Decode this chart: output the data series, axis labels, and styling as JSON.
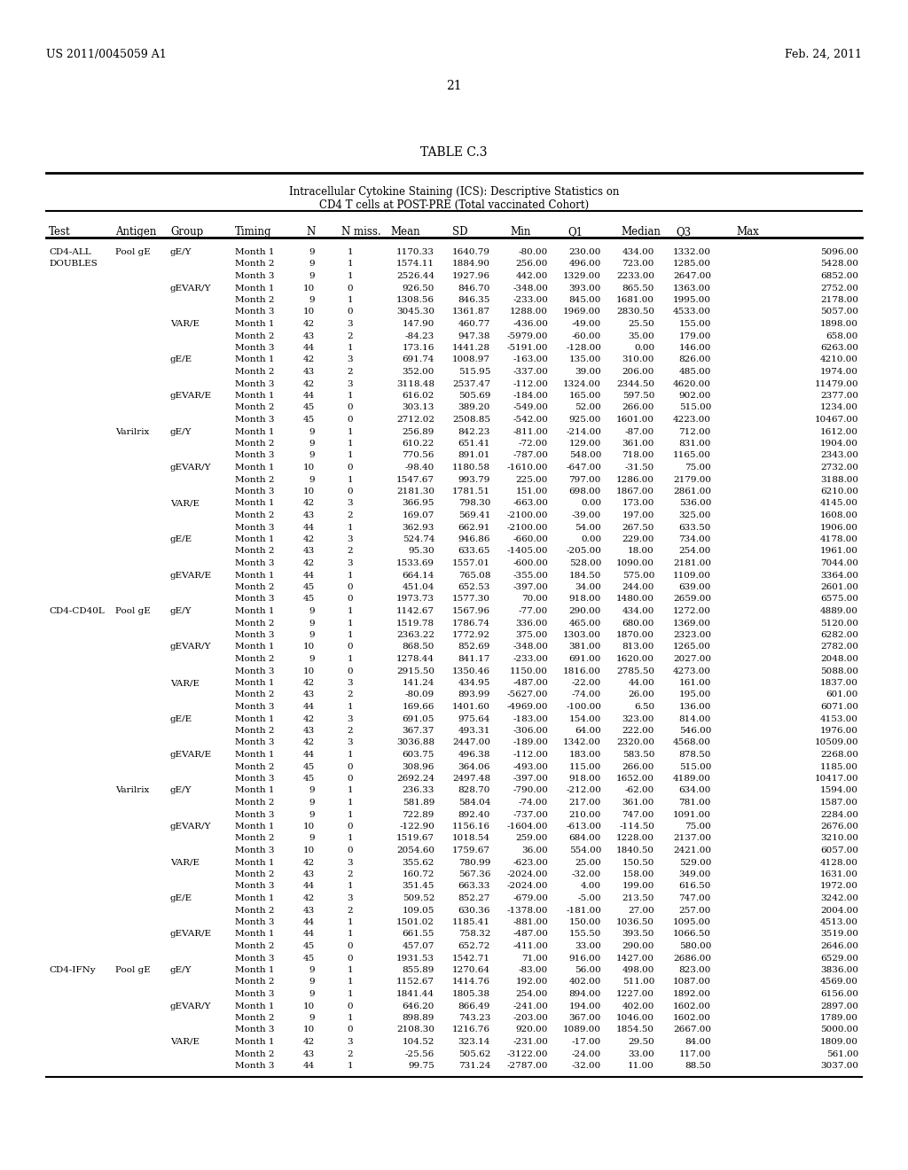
{
  "header_left": "US 2011/0045059 A1",
  "header_right": "Feb. 24, 2011",
  "page_number": "21",
  "table_title": "TABLE C.3",
  "subtitle1": "Intracellular Cytokine Staining (ICS): Descriptive Statistics on",
  "subtitle2": "CD4 T cells at POST-PRE (Total vaccinated Cohort)",
  "col_headers": [
    "Test",
    "Antigen",
    "Group",
    "Timing",
    "N",
    "N miss.",
    "Mean",
    "SD",
    "Min",
    "Q1",
    "Median",
    "Q3",
    "Max"
  ],
  "rows": [
    [
      "CD4-ALL",
      "Pool gE",
      "gE/Y",
      "Month 1",
      "9",
      "1",
      "1170.33",
      "1640.79",
      "-80.00",
      "230.00",
      "434.00",
      "1332.00",
      "5096.00"
    ],
    [
      "DOUBLES",
      "",
      "",
      "Month 2",
      "9",
      "1",
      "1574.11",
      "1884.90",
      "256.00",
      "496.00",
      "723.00",
      "1285.00",
      "5428.00"
    ],
    [
      "",
      "",
      "",
      "Month 3",
      "9",
      "1",
      "2526.44",
      "1927.96",
      "442.00",
      "1329.00",
      "2233.00",
      "2647.00",
      "6852.00"
    ],
    [
      "",
      "",
      "gEVAR/Y",
      "Month 1",
      "10",
      "0",
      "926.50",
      "846.70",
      "-348.00",
      "393.00",
      "865.50",
      "1363.00",
      "2752.00"
    ],
    [
      "",
      "",
      "",
      "Month 2",
      "9",
      "1",
      "1308.56",
      "846.35",
      "-233.00",
      "845.00",
      "1681.00",
      "1995.00",
      "2178.00"
    ],
    [
      "",
      "",
      "",
      "Month 3",
      "10",
      "0",
      "3045.30",
      "1361.87",
      "1288.00",
      "1969.00",
      "2830.50",
      "4533.00",
      "5057.00"
    ],
    [
      "",
      "",
      "VAR/E",
      "Month 1",
      "42",
      "3",
      "147.90",
      "460.77",
      "-436.00",
      "-49.00",
      "25.50",
      "155.00",
      "1898.00"
    ],
    [
      "",
      "",
      "",
      "Month 2",
      "43",
      "2",
      "-84.23",
      "947.38",
      "-5979.00",
      "-60.00",
      "35.00",
      "179.00",
      "658.00"
    ],
    [
      "",
      "",
      "",
      "Month 3",
      "44",
      "1",
      "173.16",
      "1441.28",
      "-5191.00",
      "-128.00",
      "0.00",
      "146.00",
      "6263.00"
    ],
    [
      "",
      "",
      "gE/E",
      "Month 1",
      "42",
      "3",
      "691.74",
      "1008.97",
      "-163.00",
      "135.00",
      "310.00",
      "826.00",
      "4210.00"
    ],
    [
      "",
      "",
      "",
      "Month 2",
      "43",
      "2",
      "352.00",
      "515.95",
      "-337.00",
      "39.00",
      "206.00",
      "485.00",
      "1974.00"
    ],
    [
      "",
      "",
      "",
      "Month 3",
      "42",
      "3",
      "3118.48",
      "2537.47",
      "-112.00",
      "1324.00",
      "2344.50",
      "4620.00",
      "11479.00"
    ],
    [
      "",
      "",
      "gEVAR/E",
      "Month 1",
      "44",
      "1",
      "616.02",
      "505.69",
      "-184.00",
      "165.00",
      "597.50",
      "902.00",
      "2377.00"
    ],
    [
      "",
      "",
      "",
      "Month 2",
      "45",
      "0",
      "303.13",
      "389.20",
      "-549.00",
      "52.00",
      "266.00",
      "515.00",
      "1234.00"
    ],
    [
      "",
      "",
      "",
      "Month 3",
      "45",
      "0",
      "2712.02",
      "2508.85",
      "-542.00",
      "925.00",
      "1601.00",
      "4223.00",
      "10467.00"
    ],
    [
      "",
      "Varilrix",
      "gE/Y",
      "Month 1",
      "9",
      "1",
      "256.89",
      "842.23",
      "-811.00",
      "-214.00",
      "-87.00",
      "712.00",
      "1612.00"
    ],
    [
      "",
      "",
      "",
      "Month 2",
      "9",
      "1",
      "610.22",
      "651.41",
      "-72.00",
      "129.00",
      "361.00",
      "831.00",
      "1904.00"
    ],
    [
      "",
      "",
      "",
      "Month 3",
      "9",
      "1",
      "770.56",
      "891.01",
      "-787.00",
      "548.00",
      "718.00",
      "1165.00",
      "2343.00"
    ],
    [
      "",
      "",
      "gEVAR/Y",
      "Month 1",
      "10",
      "0",
      "-98.40",
      "1180.58",
      "-1610.00",
      "-647.00",
      "-31.50",
      "75.00",
      "2732.00"
    ],
    [
      "",
      "",
      "",
      "Month 2",
      "9",
      "1",
      "1547.67",
      "993.79",
      "225.00",
      "797.00",
      "1286.00",
      "2179.00",
      "3188.00"
    ],
    [
      "",
      "",
      "",
      "Month 3",
      "10",
      "0",
      "2181.30",
      "1781.51",
      "151.00",
      "698.00",
      "1867.00",
      "2861.00",
      "6210.00"
    ],
    [
      "",
      "",
      "VAR/E",
      "Month 1",
      "42",
      "3",
      "366.95",
      "798.30",
      "-663.00",
      "0.00",
      "173.00",
      "536.00",
      "4145.00"
    ],
    [
      "",
      "",
      "",
      "Month 2",
      "43",
      "2",
      "169.07",
      "569.41",
      "-2100.00",
      "-39.00",
      "197.00",
      "325.00",
      "1608.00"
    ],
    [
      "",
      "",
      "",
      "Month 3",
      "44",
      "1",
      "362.93",
      "662.91",
      "-2100.00",
      "54.00",
      "267.50",
      "633.50",
      "1906.00"
    ],
    [
      "",
      "",
      "gE/E",
      "Month 1",
      "42",
      "3",
      "524.74",
      "946.86",
      "-660.00",
      "0.00",
      "229.00",
      "734.00",
      "4178.00"
    ],
    [
      "",
      "",
      "",
      "Month 2",
      "43",
      "2",
      "95.30",
      "633.65",
      "-1405.00",
      "-205.00",
      "18.00",
      "254.00",
      "1961.00"
    ],
    [
      "",
      "",
      "",
      "Month 3",
      "42",
      "3",
      "1533.69",
      "1557.01",
      "-600.00",
      "528.00",
      "1090.00",
      "2181.00",
      "7044.00"
    ],
    [
      "",
      "",
      "gEVAR/E",
      "Month 1",
      "44",
      "1",
      "664.14",
      "765.08",
      "-355.00",
      "184.50",
      "575.00",
      "1109.00",
      "3364.00"
    ],
    [
      "",
      "",
      "",
      "Month 2",
      "45",
      "0",
      "451.04",
      "652.53",
      "-397.00",
      "34.00",
      "244.00",
      "639.00",
      "2601.00"
    ],
    [
      "",
      "",
      "",
      "Month 3",
      "45",
      "0",
      "1973.73",
      "1577.30",
      "70.00",
      "918.00",
      "1480.00",
      "2659.00",
      "6575.00"
    ],
    [
      "CD4-CD40L",
      "Pool gE",
      "gE/Y",
      "Month 1",
      "9",
      "1",
      "1142.67",
      "1567.96",
      "-77.00",
      "290.00",
      "434.00",
      "1272.00",
      "4889.00"
    ],
    [
      "",
      "",
      "",
      "Month 2",
      "9",
      "1",
      "1519.78",
      "1786.74",
      "336.00",
      "465.00",
      "680.00",
      "1369.00",
      "5120.00"
    ],
    [
      "",
      "",
      "",
      "Month 3",
      "9",
      "1",
      "2363.22",
      "1772.92",
      "375.00",
      "1303.00",
      "1870.00",
      "2323.00",
      "6282.00"
    ],
    [
      "",
      "",
      "gEVAR/Y",
      "Month 1",
      "10",
      "0",
      "868.50",
      "852.69",
      "-348.00",
      "381.00",
      "813.00",
      "1265.00",
      "2782.00"
    ],
    [
      "",
      "",
      "",
      "Month 2",
      "9",
      "1",
      "1278.44",
      "841.17",
      "-233.00",
      "691.00",
      "1620.00",
      "2027.00",
      "2048.00"
    ],
    [
      "",
      "",
      "",
      "Month 3",
      "10",
      "0",
      "2915.50",
      "1350.46",
      "1150.00",
      "1816.00",
      "2785.50",
      "4273.00",
      "5088.00"
    ],
    [
      "",
      "",
      "VAR/E",
      "Month 1",
      "42",
      "3",
      "141.24",
      "434.95",
      "-487.00",
      "-22.00",
      "44.00",
      "161.00",
      "1837.00"
    ],
    [
      "",
      "",
      "",
      "Month 2",
      "43",
      "2",
      "-80.09",
      "893.99",
      "-5627.00",
      "-74.00",
      "26.00",
      "195.00",
      "601.00"
    ],
    [
      "",
      "",
      "",
      "Month 3",
      "44",
      "1",
      "169.66",
      "1401.60",
      "-4969.00",
      "-100.00",
      "6.50",
      "136.00",
      "6071.00"
    ],
    [
      "",
      "",
      "gE/E",
      "Month 1",
      "42",
      "3",
      "691.05",
      "975.64",
      "-183.00",
      "154.00",
      "323.00",
      "814.00",
      "4153.00"
    ],
    [
      "",
      "",
      "",
      "Month 2",
      "43",
      "2",
      "367.37",
      "493.31",
      "-306.00",
      "64.00",
      "222.00",
      "546.00",
      "1976.00"
    ],
    [
      "",
      "",
      "",
      "Month 3",
      "42",
      "3",
      "3036.88",
      "2447.00",
      "-189.00",
      "1342.00",
      "2320.00",
      "4568.00",
      "10509.00"
    ],
    [
      "",
      "",
      "gEVAR/E",
      "Month 1",
      "44",
      "1",
      "603.75",
      "496.38",
      "-112.00",
      "183.00",
      "583.50",
      "878.50",
      "2268.00"
    ],
    [
      "",
      "",
      "",
      "Month 2",
      "45",
      "0",
      "308.96",
      "364.06",
      "-493.00",
      "115.00",
      "266.00",
      "515.00",
      "1185.00"
    ],
    [
      "",
      "",
      "",
      "Month 3",
      "45",
      "0",
      "2692.24",
      "2497.48",
      "-397.00",
      "918.00",
      "1652.00",
      "4189.00",
      "10417.00"
    ],
    [
      "",
      "Varilrix",
      "gE/Y",
      "Month 1",
      "9",
      "1",
      "236.33",
      "828.70",
      "-790.00",
      "-212.00",
      "-62.00",
      "634.00",
      "1594.00"
    ],
    [
      "",
      "",
      "",
      "Month 2",
      "9",
      "1",
      "581.89",
      "584.04",
      "-74.00",
      "217.00",
      "361.00",
      "781.00",
      "1587.00"
    ],
    [
      "",
      "",
      "",
      "Month 3",
      "9",
      "1",
      "722.89",
      "892.40",
      "-737.00",
      "210.00",
      "747.00",
      "1091.00",
      "2284.00"
    ],
    [
      "",
      "",
      "gEVAR/Y",
      "Month 1",
      "10",
      "0",
      "-122.90",
      "1156.16",
      "-1604.00",
      "-613.00",
      "-114.50",
      "75.00",
      "2676.00"
    ],
    [
      "",
      "",
      "",
      "Month 2",
      "9",
      "1",
      "1519.67",
      "1018.54",
      "259.00",
      "684.00",
      "1228.00",
      "2137.00",
      "3210.00"
    ],
    [
      "",
      "",
      "",
      "Month 3",
      "10",
      "0",
      "2054.60",
      "1759.67",
      "36.00",
      "554.00",
      "1840.50",
      "2421.00",
      "6057.00"
    ],
    [
      "",
      "",
      "VAR/E",
      "Month 1",
      "42",
      "3",
      "355.62",
      "780.99",
      "-623.00",
      "25.00",
      "150.50",
      "529.00",
      "4128.00"
    ],
    [
      "",
      "",
      "",
      "Month 2",
      "43",
      "2",
      "160.72",
      "567.36",
      "-2024.00",
      "-32.00",
      "158.00",
      "349.00",
      "1631.00"
    ],
    [
      "",
      "",
      "",
      "Month 3",
      "44",
      "1",
      "351.45",
      "663.33",
      "-2024.00",
      "4.00",
      "199.00",
      "616.50",
      "1972.00"
    ],
    [
      "",
      "",
      "gE/E",
      "Month 1",
      "42",
      "3",
      "509.52",
      "852.27",
      "-679.00",
      "-5.00",
      "213.50",
      "747.00",
      "3242.00"
    ],
    [
      "",
      "",
      "",
      "Month 2",
      "43",
      "2",
      "109.05",
      "630.36",
      "-1378.00",
      "-181.00",
      "27.00",
      "257.00",
      "2004.00"
    ],
    [
      "",
      "",
      "",
      "Month 3",
      "44",
      "1",
      "1501.02",
      "1185.41",
      "-881.00",
      "150.00",
      "1036.50",
      "1095.00",
      "4513.00"
    ],
    [
      "",
      "",
      "gEVAR/E",
      "Month 1",
      "44",
      "1",
      "661.55",
      "758.32",
      "-487.00",
      "155.50",
      "393.50",
      "1066.50",
      "3519.00"
    ],
    [
      "",
      "",
      "",
      "Month 2",
      "45",
      "0",
      "457.07",
      "652.72",
      "-411.00",
      "33.00",
      "290.00",
      "580.00",
      "2646.00"
    ],
    [
      "",
      "",
      "",
      "Month 3",
      "45",
      "0",
      "1931.53",
      "1542.71",
      "71.00",
      "916.00",
      "1427.00",
      "2686.00",
      "6529.00"
    ],
    [
      "CD4-IFNy",
      "Pool gE",
      "gE/Y",
      "Month 1",
      "9",
      "1",
      "855.89",
      "1270.64",
      "-83.00",
      "56.00",
      "498.00",
      "823.00",
      "3836.00"
    ],
    [
      "",
      "",
      "",
      "Month 2",
      "9",
      "1",
      "1152.67",
      "1414.76",
      "192.00",
      "402.00",
      "511.00",
      "1087.00",
      "4569.00"
    ],
    [
      "",
      "",
      "",
      "Month 3",
      "9",
      "1",
      "1841.44",
      "1805.38",
      "254.00",
      "894.00",
      "1227.00",
      "1892.00",
      "6156.00"
    ],
    [
      "",
      "",
      "gEVAR/Y",
      "Month 1",
      "10",
      "0",
      "646.20",
      "866.49",
      "-241.00",
      "194.00",
      "402.00",
      "1602.00",
      "2897.00"
    ],
    [
      "",
      "",
      "",
      "Month 2",
      "9",
      "1",
      "898.89",
      "743.23",
      "-203.00",
      "367.00",
      "1046.00",
      "1602.00",
      "1789.00"
    ],
    [
      "",
      "",
      "",
      "Month 3",
      "10",
      "0",
      "2108.30",
      "1216.76",
      "920.00",
      "1089.00",
      "1854.50",
      "2667.00",
      "5000.00"
    ],
    [
      "",
      "",
      "VAR/E",
      "Month 1",
      "42",
      "3",
      "104.52",
      "323.14",
      "-231.00",
      "-17.00",
      "29.50",
      "84.00",
      "1809.00"
    ],
    [
      "",
      "",
      "",
      "Month 2",
      "43",
      "2",
      "-25.56",
      "505.62",
      "-3122.00",
      "-24.00",
      "33.00",
      "117.00",
      "561.00"
    ],
    [
      "",
      "",
      "",
      "Month 3",
      "44",
      "1",
      "99.75",
      "731.24",
      "-2787.00",
      "-32.00",
      "11.00",
      "88.50",
      "3037.00"
    ]
  ]
}
